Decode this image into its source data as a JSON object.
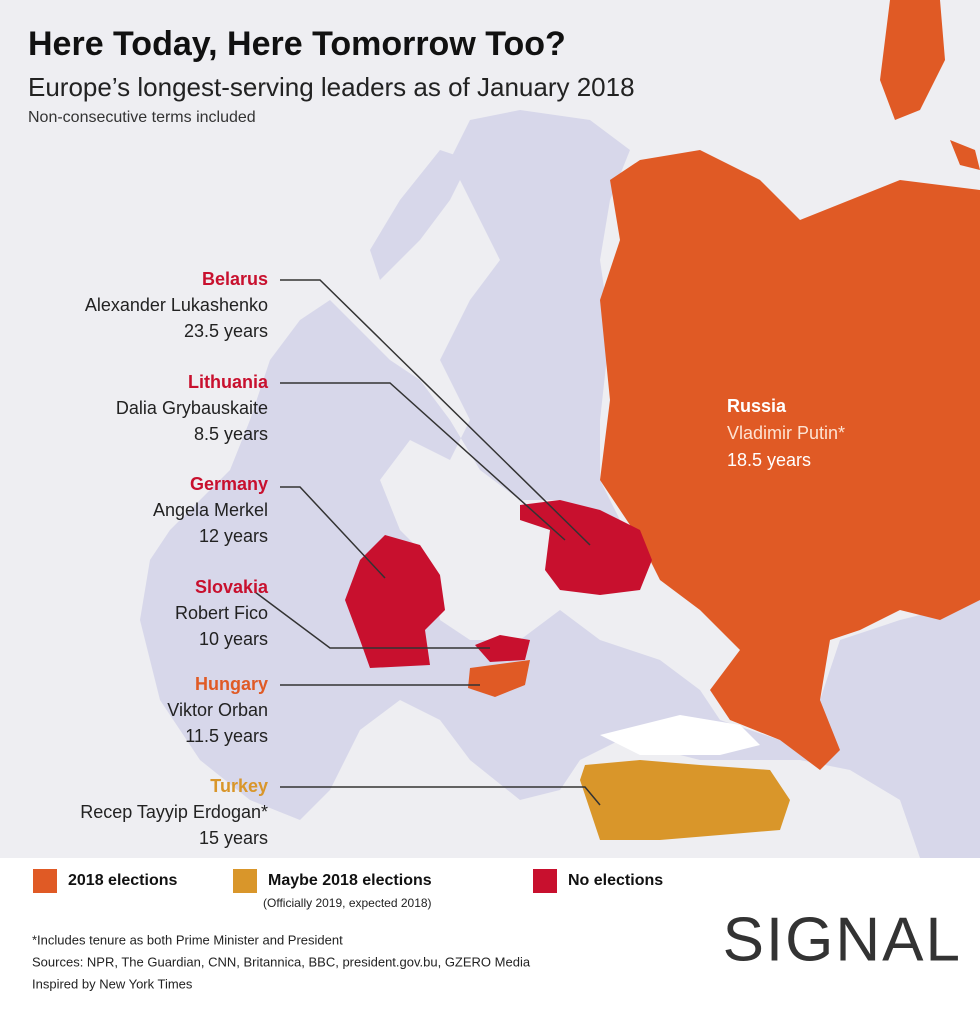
{
  "header": {
    "title": "Here Today, Here Tomorrow Too?",
    "subtitle": "Europe’s longest-serving leaders as of January 2018",
    "note": "Non-consecutive terms included"
  },
  "callouts": [
    {
      "country": "Belarus",
      "leader": "Alexander Lukashenko",
      "tenure": "23.5 years",
      "color": "#c8102e"
    },
    {
      "country": "Lithuania",
      "leader": "Dalia Grybauskaite",
      "tenure": "8.5 years",
      "color": "#c8102e"
    },
    {
      "country": "Germany",
      "leader": "Angela Merkel",
      "tenure": "12 years",
      "color": "#c8102e"
    },
    {
      "country": "Slovakia",
      "leader": "Robert Fico",
      "tenure": "10 years",
      "color": "#c8102e"
    },
    {
      "country": "Hungary",
      "leader": "Viktor Orban",
      "tenure": "11.5 years",
      "color": "#e05a25"
    },
    {
      "country": "Turkey",
      "leader": "Recep Tayyip Erdogan*",
      "tenure": "15 years",
      "color": "#d9962a"
    }
  ],
  "russia": {
    "country": "Russia",
    "leader": "Vladimir Putin*",
    "tenure": "18.5 years"
  },
  "legend": [
    {
      "label": "2018 elections",
      "color": "#e05a25"
    },
    {
      "label": "Maybe 2018 elections",
      "sublabel": "(Officially 2019, expected 2018)",
      "color": "#d9962a"
    },
    {
      "label": "No elections",
      "color": "#c8102e"
    }
  ],
  "footer": [
    "*Includes tenure as both Prime Minister and President",
    "Sources: NPR, The Guardian, CNN, Britannica, BBC, president.gov.bu, GZERO Media",
    "Inspired by New York Times"
  ],
  "logo": "SIGNAL"
}
